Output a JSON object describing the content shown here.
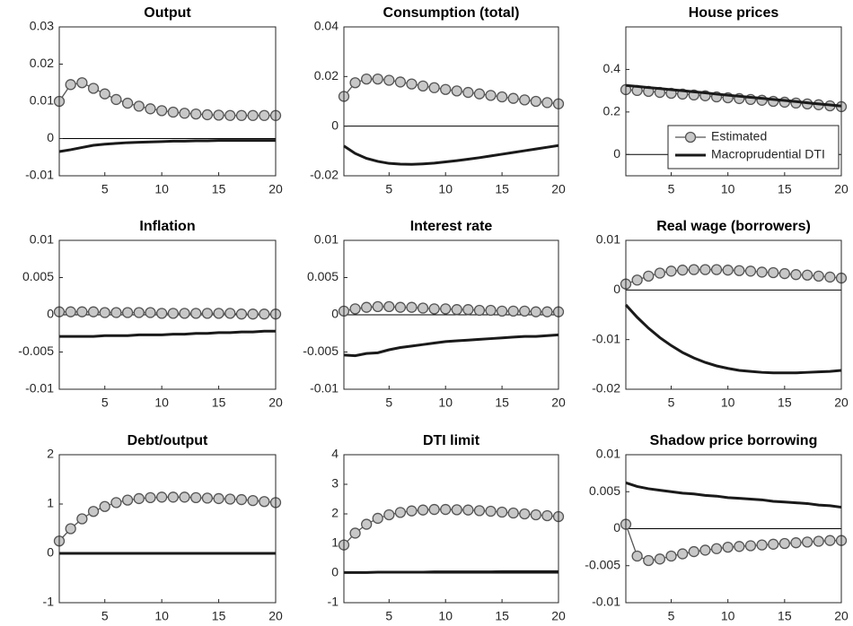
{
  "chart_data": [
    {
      "type": "line",
      "title": "Output",
      "x": [
        1,
        2,
        3,
        4,
        5,
        6,
        7,
        8,
        9,
        10,
        11,
        12,
        13,
        14,
        15,
        16,
        17,
        18,
        19,
        20
      ],
      "xlim": [
        1,
        20
      ],
      "xticks": [
        5,
        10,
        15,
        20
      ],
      "ylim": [
        -0.01,
        0.03
      ],
      "yticks": [
        -0.01,
        0,
        0.01,
        0.02,
        0.03
      ],
      "series": [
        {
          "color": "#555555",
          "marker": "circle",
          "values": [
            0.01,
            0.0145,
            0.015,
            0.0135,
            0.012,
            0.0105,
            0.0095,
            0.0087,
            0.008,
            0.0075,
            0.0071,
            0.0068,
            0.0066,
            0.0064,
            0.0063,
            0.0062,
            0.0062,
            0.0062,
            0.0062,
            0.0062
          ]
        },
        {
          "color": "#1a1a1a",
          "values": [
            -0.0035,
            -0.003,
            -0.0024,
            -0.0018,
            -0.0015,
            -0.0013,
            -0.0011,
            -0.001,
            -0.0009,
            -0.0008,
            -0.0007,
            -0.0007,
            -0.0006,
            -0.0006,
            -0.0005,
            -0.0005,
            -0.0005,
            -0.0005,
            -0.0005,
            -0.0005
          ]
        }
      ]
    },
    {
      "type": "line",
      "title": "Consumption (total)",
      "x": [
        1,
        2,
        3,
        4,
        5,
        6,
        7,
        8,
        9,
        10,
        11,
        12,
        13,
        14,
        15,
        16,
        17,
        18,
        19,
        20
      ],
      "xlim": [
        1,
        20
      ],
      "xticks": [
        5,
        10,
        15,
        20
      ],
      "ylim": [
        -0.02,
        0.04
      ],
      "yticks": [
        -0.02,
        0,
        0.02,
        0.04
      ],
      "series": [
        {
          "color": "#555555",
          "marker": "circle",
          "values": [
            0.012,
            0.0175,
            0.019,
            0.019,
            0.0185,
            0.0178,
            0.017,
            0.0162,
            0.0155,
            0.0148,
            0.0142,
            0.0136,
            0.013,
            0.0124,
            0.0118,
            0.0112,
            0.0106,
            0.01,
            0.0095,
            0.009
          ]
        },
        {
          "color": "#1a1a1a",
          "values": [
            -0.008,
            -0.011,
            -0.013,
            -0.0142,
            -0.015,
            -0.0153,
            -0.0154,
            -0.0152,
            -0.0149,
            -0.0144,
            -0.0139,
            -0.0133,
            -0.0127,
            -0.012,
            -0.0113,
            -0.0106,
            -0.0099,
            -0.0092,
            -0.0085,
            -0.0078
          ]
        }
      ]
    },
    {
      "type": "line",
      "title": "House prices",
      "x": [
        1,
        2,
        3,
        4,
        5,
        6,
        7,
        8,
        9,
        10,
        11,
        12,
        13,
        14,
        15,
        16,
        17,
        18,
        19,
        20
      ],
      "xlim": [
        1,
        20
      ],
      "xticks": [
        5,
        10,
        15,
        20
      ],
      "ylim": [
        -0.1,
        0.6
      ],
      "yticks": [
        0,
        0.2,
        0.4
      ],
      "legend": "southeast",
      "series": [
        {
          "name": "Estimated",
          "color": "#555555",
          "marker": "circle",
          "values": [
            0.305,
            0.301,
            0.297,
            0.292,
            0.288,
            0.284,
            0.28,
            0.276,
            0.271,
            0.267,
            0.263,
            0.259,
            0.255,
            0.25,
            0.246,
            0.242,
            0.238,
            0.234,
            0.229,
            0.225
          ]
        },
        {
          "name": "Macroprudential DTI",
          "color": "#1a1a1a",
          "values": [
            0.325,
            0.32,
            0.315,
            0.31,
            0.305,
            0.3,
            0.295,
            0.29,
            0.284,
            0.279,
            0.274,
            0.269,
            0.264,
            0.259,
            0.254,
            0.249,
            0.243,
            0.238,
            0.233,
            0.228
          ]
        }
      ]
    },
    {
      "type": "line",
      "title": "Inflation",
      "x": [
        1,
        2,
        3,
        4,
        5,
        6,
        7,
        8,
        9,
        10,
        11,
        12,
        13,
        14,
        15,
        16,
        17,
        18,
        19,
        20
      ],
      "xlim": [
        1,
        20
      ],
      "xticks": [
        5,
        10,
        15,
        20
      ],
      "ylim": [
        -0.01,
        0.01
      ],
      "yticks": [
        -0.01,
        -0.005,
        0,
        0.005,
        0.01
      ],
      "series": [
        {
          "color": "#555555",
          "marker": "circle",
          "values": [
            0.0004,
            0.0004,
            0.0004,
            0.0004,
            0.0003,
            0.0003,
            0.0003,
            0.0003,
            0.0003,
            0.0002,
            0.0002,
            0.0002,
            0.0002,
            0.0002,
            0.0002,
            0.0002,
            0.0001,
            0.0001,
            0.0001,
            0.0001
          ]
        },
        {
          "color": "#1a1a1a",
          "values": [
            -0.0029,
            -0.0029,
            -0.0029,
            -0.0029,
            -0.0028,
            -0.0028,
            -0.0028,
            -0.0027,
            -0.0027,
            -0.0027,
            -0.0026,
            -0.0026,
            -0.0025,
            -0.0025,
            -0.0024,
            -0.0024,
            -0.0023,
            -0.0023,
            -0.0022,
            -0.0022
          ]
        }
      ]
    },
    {
      "type": "line",
      "title": "Interest rate",
      "x": [
        1,
        2,
        3,
        4,
        5,
        6,
        7,
        8,
        9,
        10,
        11,
        12,
        13,
        14,
        15,
        16,
        17,
        18,
        19,
        20
      ],
      "xlim": [
        1,
        20
      ],
      "xticks": [
        5,
        10,
        15,
        20
      ],
      "ylim": [
        -0.01,
        0.01
      ],
      "yticks": [
        -0.01,
        -0.005,
        0,
        0.005,
        0.01
      ],
      "series": [
        {
          "color": "#555555",
          "marker": "circle",
          "values": [
            0.0005,
            0.0008,
            0.001,
            0.0011,
            0.0011,
            0.001,
            0.001,
            0.0009,
            0.0008,
            0.0008,
            0.0007,
            0.0007,
            0.0006,
            0.0006,
            0.0005,
            0.0005,
            0.0005,
            0.0004,
            0.0004,
            0.0004
          ]
        },
        {
          "color": "#1a1a1a",
          "values": [
            -0.0054,
            -0.0055,
            -0.0052,
            -0.0051,
            -0.0047,
            -0.0044,
            -0.0042,
            -0.004,
            -0.0038,
            -0.0036,
            -0.0035,
            -0.0034,
            -0.0033,
            -0.0032,
            -0.0031,
            -0.003,
            -0.0029,
            -0.0029,
            -0.0028,
            -0.0027
          ]
        }
      ]
    },
    {
      "type": "line",
      "title": "Real wage (borrowers)",
      "x": [
        1,
        2,
        3,
        4,
        5,
        6,
        7,
        8,
        9,
        10,
        11,
        12,
        13,
        14,
        15,
        16,
        17,
        18,
        19,
        20
      ],
      "xlim": [
        1,
        20
      ],
      "xticks": [
        5,
        10,
        15,
        20
      ],
      "ylim": [
        -0.02,
        0.01
      ],
      "yticks": [
        -0.02,
        -0.01,
        0,
        0.01
      ],
      "series": [
        {
          "color": "#555555",
          "marker": "circle",
          "values": [
            0.0012,
            0.002,
            0.0028,
            0.0034,
            0.0038,
            0.004,
            0.0041,
            0.0041,
            0.0041,
            0.004,
            0.0039,
            0.0038,
            0.0036,
            0.0035,
            0.0033,
            0.0031,
            0.003,
            0.0028,
            0.0026,
            0.0024
          ]
        },
        {
          "color": "#1a1a1a",
          "values": [
            -0.003,
            -0.0055,
            -0.0077,
            -0.0096,
            -0.0112,
            -0.0126,
            -0.0137,
            -0.0146,
            -0.0153,
            -0.0158,
            -0.0162,
            -0.0164,
            -0.0166,
            -0.0167,
            -0.0167,
            -0.0167,
            -0.0166,
            -0.0165,
            -0.0164,
            -0.0162
          ]
        }
      ]
    },
    {
      "type": "line",
      "title": "Debt/output",
      "x": [
        1,
        2,
        3,
        4,
        5,
        6,
        7,
        8,
        9,
        10,
        11,
        12,
        13,
        14,
        15,
        16,
        17,
        18,
        19,
        20
      ],
      "xlim": [
        1,
        20
      ],
      "xticks": [
        5,
        10,
        15,
        20
      ],
      "ylim": [
        -1,
        2
      ],
      "yticks": [
        -1,
        0,
        1,
        2
      ],
      "series": [
        {
          "color": "#555555",
          "marker": "circle",
          "values": [
            0.25,
            0.5,
            0.7,
            0.85,
            0.95,
            1.03,
            1.08,
            1.11,
            1.13,
            1.14,
            1.14,
            1.14,
            1.13,
            1.12,
            1.11,
            1.1,
            1.09,
            1.07,
            1.05,
            1.03
          ]
        },
        {
          "color": "#1a1a1a",
          "values": [
            0,
            0,
            0,
            0,
            0,
            0,
            0,
            0,
            0,
            0,
            0,
            0,
            0,
            0,
            0,
            0,
            0,
            0,
            0,
            0
          ]
        }
      ]
    },
    {
      "type": "line",
      "title": "DTI limit",
      "x": [
        1,
        2,
        3,
        4,
        5,
        6,
        7,
        8,
        9,
        10,
        11,
        12,
        13,
        14,
        15,
        16,
        17,
        18,
        19,
        20
      ],
      "xlim": [
        1,
        20
      ],
      "xticks": [
        5,
        10,
        15,
        20
      ],
      "ylim": [
        -1,
        4
      ],
      "yticks": [
        -1,
        0,
        1,
        2,
        3,
        4
      ],
      "series": [
        {
          "color": "#555555",
          "marker": "circle",
          "values": [
            0.95,
            1.35,
            1.65,
            1.85,
            1.97,
            2.05,
            2.1,
            2.13,
            2.15,
            2.15,
            2.14,
            2.13,
            2.11,
            2.09,
            2.06,
            2.03,
            2,
            1.97,
            1.94,
            1.91
          ]
        },
        {
          "color": "#1a1a1a",
          "values": [
            0.02,
            0.02,
            0.02,
            0.03,
            0.03,
            0.03,
            0.03,
            0.03,
            0.04,
            0.04,
            0.04,
            0.04,
            0.04,
            0.04,
            0.05,
            0.05,
            0.05,
            0.05,
            0.05,
            0.05
          ]
        }
      ]
    },
    {
      "type": "line",
      "title": "Shadow price borrowing",
      "x": [
        1,
        2,
        3,
        4,
        5,
        6,
        7,
        8,
        9,
        10,
        11,
        12,
        13,
        14,
        15,
        16,
        17,
        18,
        19,
        20
      ],
      "xlim": [
        1,
        20
      ],
      "xticks": [
        5,
        10,
        15,
        20
      ],
      "ylim": [
        -0.01,
        0.01
      ],
      "yticks": [
        -0.01,
        -0.005,
        0,
        0.005,
        0.01
      ],
      "series": [
        {
          "color": "#555555",
          "marker": "circle",
          "values": [
            0.0006,
            -0.0037,
            -0.0043,
            -0.0041,
            -0.0037,
            -0.0034,
            -0.0031,
            -0.0029,
            -0.0027,
            -0.0025,
            -0.0024,
            -0.0023,
            -0.0022,
            -0.0021,
            -0.002,
            -0.0019,
            -0.0018,
            -0.0017,
            -0.0016,
            -0.0016
          ]
        },
        {
          "color": "#1a1a1a",
          "values": [
            0.0062,
            0.0057,
            0.0054,
            0.0052,
            0.005,
            0.0048,
            0.0047,
            0.0045,
            0.0044,
            0.0042,
            0.0041,
            0.004,
            0.0039,
            0.0037,
            0.0036,
            0.0035,
            0.0034,
            0.0032,
            0.0031,
            0.0029
          ]
        }
      ]
    }
  ]
}
